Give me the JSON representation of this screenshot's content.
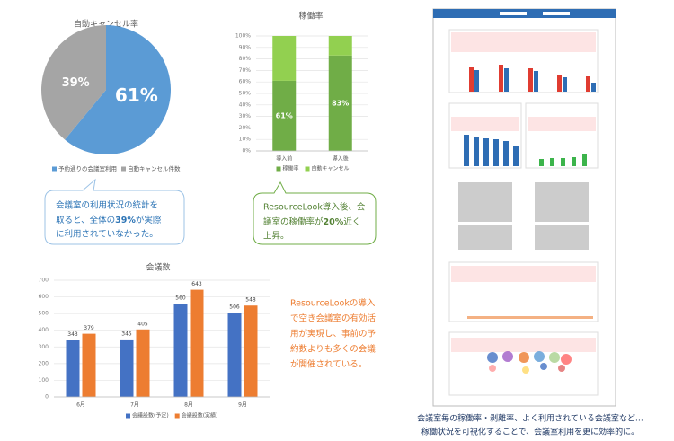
{
  "chart_data": [
    {
      "type": "pie",
      "title": "自動キャンセル率",
      "categories": [
        "予約通りの会議室利用",
        "自動キャンセル件数"
      ],
      "values": [
        61,
        39
      ],
      "value_labels": [
        "61%",
        "39%"
      ],
      "colors": [
        "#5b9bd5",
        "#a5a5a5"
      ]
    },
    {
      "type": "bar",
      "title": "稼働率",
      "stacked": true,
      "categories": [
        "導入前",
        "導入後"
      ],
      "series": [
        {
          "name": "稼働率",
          "color": "#70ad47",
          "values": [
            61,
            83
          ],
          "value_labels": [
            "61%",
            "83%"
          ]
        },
        {
          "name": "自動キャンセル",
          "color": "#92d050",
          "values": [
            39,
            17
          ]
        }
      ],
      "ylim": [
        0,
        100
      ],
      "yticks": [
        {
          "value": 0,
          "label": "0%"
        },
        {
          "value": 10,
          "label": "10%"
        },
        {
          "value": 20,
          "label": "20%"
        },
        {
          "value": 30,
          "label": "30%"
        },
        {
          "value": 40,
          "label": "40%"
        },
        {
          "value": 50,
          "label": "50%"
        },
        {
          "value": 60,
          "label": "60%"
        },
        {
          "value": 70,
          "label": "70%"
        },
        {
          "value": 80,
          "label": "80%"
        },
        {
          "value": 90,
          "label": "90%"
        },
        {
          "value": 100,
          "label": "100%"
        }
      ],
      "grid": true
    },
    {
      "type": "bar",
      "title": "会議数",
      "stacked": false,
      "categories": [
        "6月",
        "7月",
        "8月",
        "9月"
      ],
      "series": [
        {
          "name": "会議設数(予定)",
          "color": "#4472c4",
          "values": [
            343,
            345,
            560,
            506
          ]
        },
        {
          "name": "会議設数(実績)",
          "color": "#ed7d31",
          "values": [
            379,
            405,
            643,
            548
          ]
        }
      ],
      "ylim": [
        0,
        700
      ],
      "yticks": [
        0,
        100,
        200,
        300,
        400,
        500,
        600,
        700
      ],
      "grid": true
    }
  ],
  "notes": [
    {
      "lines": [
        [
          "会議室の利用状況の統計を"
        ],
        [
          "取ると、全体の",
          "39%",
          "が実際"
        ],
        [
          "に利用されていなかった。"
        ]
      ]
    },
    {
      "lines": [
        [
          "ResourceLook導入後、会"
        ],
        [
          "議室の稼働率が",
          "20%",
          "近く"
        ],
        [
          "上昇。"
        ]
      ]
    },
    {
      "lines": [
        "ResourceLookの導入",
        "で空き会議室の有効活",
        "用が実現し、事前の予",
        "約数よりも多くの会議",
        "が開催されている。"
      ]
    }
  ],
  "caption": [
    "会議室毎の稼働率・剥離率、よく利用されている会議室など…",
    "稼働状況を可視化することで、会議室利用を更に効率的に。"
  ]
}
